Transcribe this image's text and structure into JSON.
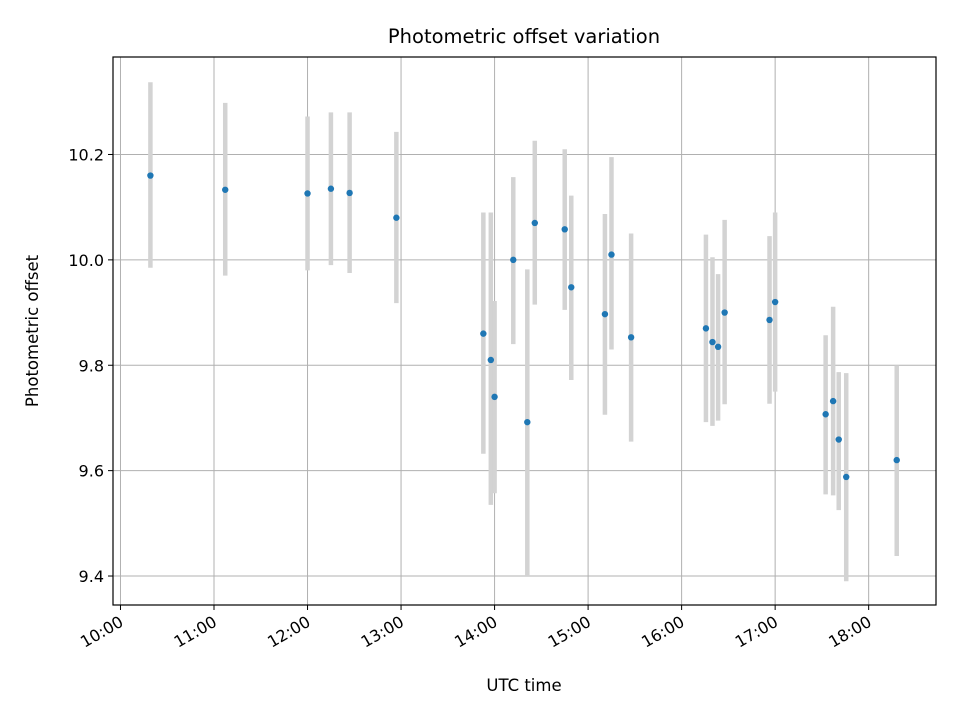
{
  "chart_data": {
    "type": "scatter",
    "title": "Photometric offset variation",
    "xlabel": "UTC time",
    "ylabel": "Photometric offset",
    "x_unit": "hour of day (UTC)",
    "xlim": [
      9.92,
      18.72
    ],
    "ylim": [
      9.345,
      10.385
    ],
    "x_ticks": [
      {
        "value": 10,
        "label": "10:00"
      },
      {
        "value": 11,
        "label": "11:00"
      },
      {
        "value": 12,
        "label": "12:00"
      },
      {
        "value": 13,
        "label": "13:00"
      },
      {
        "value": 14,
        "label": "14:00"
      },
      {
        "value": 15,
        "label": "15:00"
      },
      {
        "value": 16,
        "label": "16:00"
      },
      {
        "value": 17,
        "label": "17:00"
      },
      {
        "value": 18,
        "label": "18:00"
      }
    ],
    "y_ticks": [
      {
        "value": 9.4,
        "label": "9.4"
      },
      {
        "value": 9.6,
        "label": "9.6"
      },
      {
        "value": 9.8,
        "label": "9.8"
      },
      {
        "value": 10.0,
        "label": "10.0"
      },
      {
        "value": 10.2,
        "label": "10.2"
      }
    ],
    "grid": true,
    "x_tick_rotation": "30 degrees",
    "colors": {
      "point": "#1f77b4",
      "errorbar": "#d3d3d3",
      "grid": "#b0b0b0"
    },
    "points": [
      {
        "x": 10.32,
        "y": 10.16,
        "err_low": 9.985,
        "err_high": 10.337
      },
      {
        "x": 11.12,
        "y": 10.133,
        "err_low": 9.97,
        "err_high": 10.298
      },
      {
        "x": 12.0,
        "y": 10.126,
        "err_low": 9.98,
        "err_high": 10.272
      },
      {
        "x": 12.25,
        "y": 10.135,
        "err_low": 9.99,
        "err_high": 10.28
      },
      {
        "x": 12.45,
        "y": 10.127,
        "err_low": 9.975,
        "err_high": 10.28
      },
      {
        "x": 12.95,
        "y": 10.08,
        "err_low": 9.918,
        "err_high": 10.243
      },
      {
        "x": 13.88,
        "y": 9.86,
        "err_low": 9.632,
        "err_high": 10.09
      },
      {
        "x": 13.96,
        "y": 9.81,
        "err_low": 9.535,
        "err_high": 10.09
      },
      {
        "x": 14.0,
        "y": 9.74,
        "err_low": 9.557,
        "err_high": 9.922
      },
      {
        "x": 14.2,
        "y": 10.0,
        "err_low": 9.84,
        "err_high": 10.157
      },
      {
        "x": 14.35,
        "y": 9.692,
        "err_low": 9.4,
        "err_high": 9.982
      },
      {
        "x": 14.43,
        "y": 10.07,
        "err_low": 9.915,
        "err_high": 10.226
      },
      {
        "x": 14.75,
        "y": 10.058,
        "err_low": 9.905,
        "err_high": 10.21
      },
      {
        "x": 14.82,
        "y": 9.948,
        "err_low": 9.772,
        "err_high": 10.122
      },
      {
        "x": 15.18,
        "y": 9.897,
        "err_low": 9.706,
        "err_high": 10.087
      },
      {
        "x": 15.25,
        "y": 10.01,
        "err_low": 9.83,
        "err_high": 10.195
      },
      {
        "x": 15.46,
        "y": 9.853,
        "err_low": 9.655,
        "err_high": 10.05
      },
      {
        "x": 16.26,
        "y": 9.87,
        "err_low": 9.692,
        "err_high": 10.048
      },
      {
        "x": 16.33,
        "y": 9.844,
        "err_low": 9.685,
        "err_high": 10.005
      },
      {
        "x": 16.39,
        "y": 9.835,
        "err_low": 9.695,
        "err_high": 9.973
      },
      {
        "x": 16.46,
        "y": 9.9,
        "err_low": 9.726,
        "err_high": 10.076
      },
      {
        "x": 16.94,
        "y": 9.886,
        "err_low": 9.727,
        "err_high": 10.045
      },
      {
        "x": 17.0,
        "y": 9.92,
        "err_low": 9.75,
        "err_high": 10.09
      },
      {
        "x": 17.54,
        "y": 9.707,
        "err_low": 9.555,
        "err_high": 9.857
      },
      {
        "x": 17.62,
        "y": 9.732,
        "err_low": 9.553,
        "err_high": 9.911
      },
      {
        "x": 17.68,
        "y": 9.659,
        "err_low": 9.525,
        "err_high": 9.787
      },
      {
        "x": 17.76,
        "y": 9.588,
        "err_low": 9.39,
        "err_high": 9.785
      },
      {
        "x": 18.3,
        "y": 9.62,
        "err_low": 9.438,
        "err_high": 9.8
      }
    ]
  }
}
